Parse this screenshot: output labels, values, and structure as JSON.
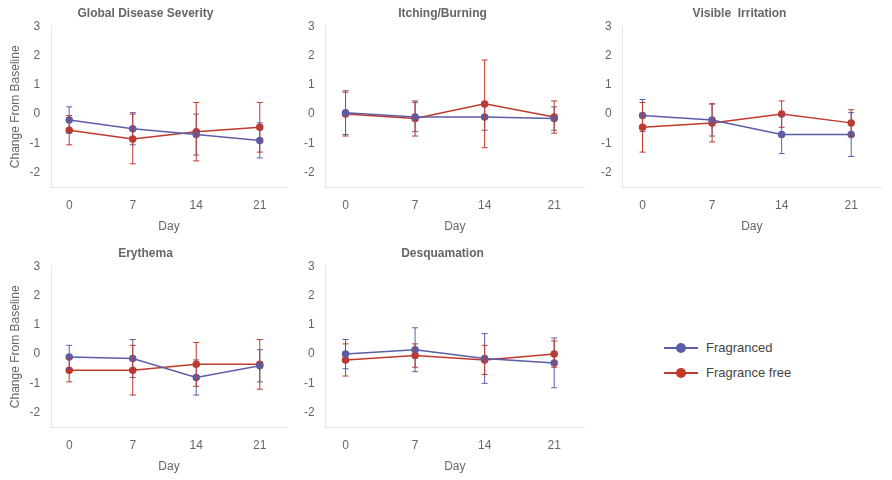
{
  "chart_data": [
    {
      "type": "line",
      "title": "Global Disease Severity",
      "x": [
        0,
        7,
        14,
        21
      ],
      "series": [
        {
          "name": "Fragranced",
          "color": "#5B5EA6",
          "marker": "circle",
          "values": [
            -0.2,
            -0.5,
            -0.7,
            -0.9
          ],
          "errors": [
            0.45,
            0.55,
            0.7,
            0.6
          ]
        },
        {
          "name": "Fragrance free",
          "color": "#C0392B",
          "marker": "circle",
          "values": [
            -0.55,
            -0.85,
            -0.6,
            -0.45
          ],
          "errors": [
            0.5,
            0.85,
            1.0,
            0.85
          ]
        }
      ],
      "xlabel": "Day",
      "ylabel": "Change From Baseline",
      "xlim": [
        -2,
        24
      ],
      "xticks": [
        0,
        7,
        14,
        21
      ],
      "ylim": [
        -2.5,
        3.0
      ],
      "yticks": [
        -2,
        -1,
        0,
        1,
        2,
        3
      ],
      "grid": false
    },
    {
      "type": "line",
      "title": "Itching/Burning",
      "x": [
        0,
        7,
        14,
        21
      ],
      "series": [
        {
          "name": "Fragranced",
          "color": "#5B5EA6",
          "marker": "circle",
          "values": [
            0.05,
            -0.1,
            -0.1,
            -0.15
          ],
          "errors": [
            0.75,
            0.5,
            0.45,
            0.4
          ]
        },
        {
          "name": "Fragrance free",
          "color": "#C0392B",
          "marker": "circle",
          "values": [
            0.0,
            -0.15,
            0.35,
            -0.1
          ],
          "errors": [
            0.75,
            0.6,
            1.5,
            0.55
          ]
        }
      ],
      "xlabel": "Day",
      "xlim": [
        -2,
        24
      ],
      "xticks": [
        0,
        7,
        14,
        21
      ],
      "ylim": [
        -2.5,
        3.0
      ],
      "yticks": [
        -2,
        -1,
        0,
        1,
        2,
        3
      ],
      "grid": false
    },
    {
      "type": "line",
      "title": "Visible  Irritation",
      "x": [
        0,
        7,
        14,
        21
      ],
      "series": [
        {
          "name": "Fragranced",
          "color": "#5B5EA6",
          "marker": "circle",
          "values": [
            -0.05,
            -0.2,
            -0.7,
            -0.7
          ],
          "errors": [
            0.55,
            0.55,
            0.65,
            0.75
          ]
        },
        {
          "name": "Fragrance free",
          "color": "#C0392B",
          "marker": "circle",
          "values": [
            -0.45,
            -0.3,
            0.0,
            -0.3
          ],
          "errors": [
            0.85,
            0.65,
            0.45,
            0.45
          ]
        }
      ],
      "xlabel": "Day",
      "xlim": [
        -2,
        24
      ],
      "xticks": [
        0,
        7,
        14,
        21
      ],
      "ylim": [
        -2.5,
        3.0
      ],
      "yticks": [
        -2,
        -1,
        0,
        1,
        2,
        3
      ],
      "grid": false
    },
    {
      "type": "line",
      "title": "Erythema",
      "x": [
        0,
        7,
        14,
        21
      ],
      "series": [
        {
          "name": "Fragranced",
          "color": "#5B5EA6",
          "marker": "circle",
          "values": [
            -0.1,
            -0.15,
            -0.8,
            -0.4
          ],
          "errors": [
            0.4,
            0.65,
            0.6,
            0.55
          ]
        },
        {
          "name": "Fragrance free",
          "color": "#C0392B",
          "marker": "circle",
          "values": [
            -0.55,
            -0.55,
            -0.35,
            -0.35
          ],
          "errors": [
            0.4,
            0.85,
            0.75,
            0.85
          ]
        }
      ],
      "xlabel": "Day",
      "ylabel": "Change From Baseline",
      "xlim": [
        -2,
        24
      ],
      "xticks": [
        0,
        7,
        14,
        21
      ],
      "ylim": [
        -2.5,
        3.0
      ],
      "yticks": [
        -2,
        -1,
        0,
        1,
        2,
        3
      ],
      "grid": false
    },
    {
      "type": "line",
      "title": "Desquamation",
      "x": [
        0,
        7,
        14,
        21
      ],
      "series": [
        {
          "name": "Fragranced",
          "color": "#5B5EA6",
          "marker": "circle",
          "values": [
            0.0,
            0.15,
            -0.15,
            -0.3
          ],
          "errors": [
            0.5,
            0.75,
            0.85,
            0.85
          ]
        },
        {
          "name": "Fragrance free",
          "color": "#C0392B",
          "marker": "circle",
          "values": [
            -0.2,
            -0.05,
            -0.2,
            0.0
          ],
          "errors": [
            0.55,
            0.4,
            0.5,
            0.45
          ]
        }
      ],
      "xlabel": "Day",
      "xlim": [
        -2,
        24
      ],
      "xticks": [
        0,
        7,
        14,
        21
      ],
      "ylim": [
        -2.5,
        3.0
      ],
      "yticks": [
        -2,
        -1,
        0,
        1,
        2,
        3
      ],
      "grid": false
    }
  ]
}
